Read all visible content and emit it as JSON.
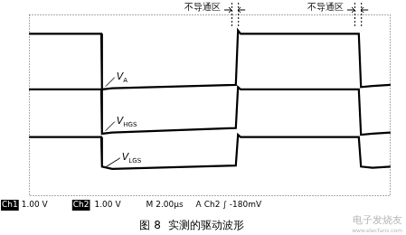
{
  "chart_data": {
    "type": "line",
    "x": [
      0,
      2.0,
      2.02,
      2.3,
      5.72,
      5.78,
      5.85,
      9.12,
      9.18,
      9.5,
      10
    ],
    "series": [
      {
        "name": "VA",
        "color": "#000000",
        "values": [
          7.15,
          7.15,
          4.7,
          4.75,
          4.9,
          7.3,
          7.15,
          7.15,
          4.8,
          4.85,
          4.9
        ]
      },
      {
        "name": "VHGS",
        "color": "#000000",
        "values": [
          4.7,
          4.7,
          2.75,
          2.8,
          3.0,
          4.8,
          4.7,
          4.7,
          2.7,
          2.75,
          2.8
        ]
      },
      {
        "name": "VLGS",
        "color": "#000000",
        "values": [
          2.6,
          2.6,
          1.3,
          1.2,
          1.35,
          2.7,
          2.6,
          2.6,
          1.3,
          1.25,
          1.3
        ]
      }
    ],
    "xlim": [
      0,
      10
    ],
    "ylim": [
      0,
      8
    ],
    "grid": false,
    "tick_labels": false,
    "annotations": [
      {
        "text": "不导通区",
        "x": [
          5.6,
          5.78
        ]
      },
      {
        "text": "不导通区",
        "x": [
          9.0,
          9.18
        ]
      }
    ]
  },
  "status_bar": [
    "Ch1",
    "1.00 V",
    "Ch2",
    "1.00 V",
    "M 2.00μs",
    "A Ch2 ∫ -180mV"
  ],
  "caption": "图 8  实测的驱动波形",
  "watermark": [
    "电子发烧友",
    "www.elecfans.com"
  ]
}
